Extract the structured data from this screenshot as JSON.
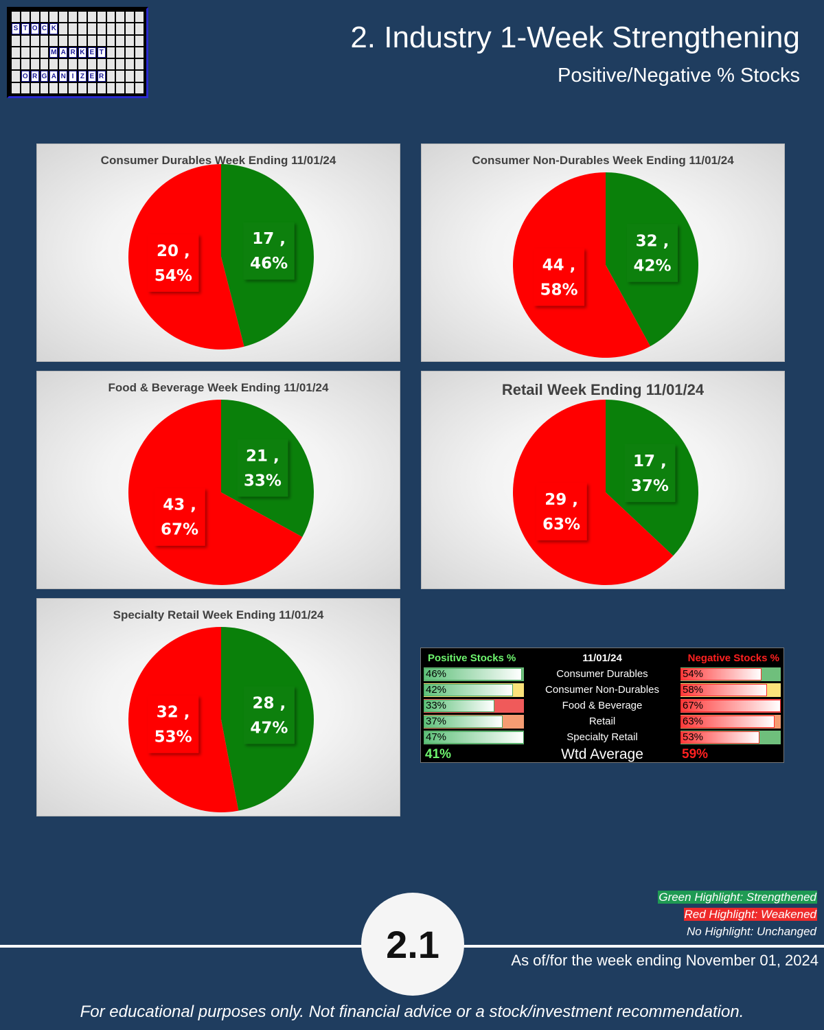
{
  "logo": {
    "words": [
      "STOCK",
      "MARKET",
      "ORGANIZER"
    ]
  },
  "header": {
    "title": "2. Industry 1-Week Strengthening",
    "subtitle": "Positive/Negative % Stocks"
  },
  "colors": {
    "positive": "#0a800a",
    "negative": "#ff0000",
    "background": "#1f3d5f"
  },
  "chart_data": [
    {
      "type": "pie",
      "title": "Consumer Durables Week Ending 11/01/24",
      "slices": [
        {
          "label": "17 ,\n46%",
          "count": 17,
          "percent": 46,
          "color": "#0a800a"
        },
        {
          "label": "20 ,\n54%",
          "count": 20,
          "percent": 54,
          "color": "#ff0000"
        }
      ]
    },
    {
      "type": "pie",
      "title": "Consumer Non-Durables Week Ending 11/01/24",
      "slices": [
        {
          "label": "32 ,\n42%",
          "count": 32,
          "percent": 42,
          "color": "#0a800a"
        },
        {
          "label": "44 ,\n58%",
          "count": 44,
          "percent": 58,
          "color": "#ff0000"
        }
      ]
    },
    {
      "type": "pie",
      "title": "Food & Beverage Week Ending 11/01/24",
      "slices": [
        {
          "label": "21 ,\n33%",
          "count": 21,
          "percent": 33,
          "color": "#0a800a"
        },
        {
          "label": "43 ,\n67%",
          "count": 43,
          "percent": 67,
          "color": "#ff0000"
        }
      ]
    },
    {
      "type": "pie",
      "title": "Retail Week Ending 11/01/24",
      "slices": [
        {
          "label": "17 ,\n37%",
          "count": 17,
          "percent": 37,
          "color": "#0a800a"
        },
        {
          "label": "29 ,\n63%",
          "count": 29,
          "percent": 63,
          "color": "#ff0000"
        }
      ]
    },
    {
      "type": "pie",
      "title": "Specialty Retail Week Ending 11/01/24",
      "slices": [
        {
          "label": "28 ,\n47%",
          "count": 28,
          "percent": 47,
          "color": "#0a800a"
        },
        {
          "label": "32 ,\n53%",
          "count": 32,
          "percent": 53,
          "color": "#ff0000"
        }
      ]
    }
  ],
  "summary_table": {
    "header_positive": "Positive Stocks %",
    "header_date": "11/01/24",
    "header_negative": "Negative Stocks %",
    "rows": [
      {
        "industry": "Consumer Durables",
        "positive": "46%",
        "pos_value": 46,
        "pos_change": "strengthened",
        "negative": "54%",
        "neg_value": 54,
        "neg_change": "strengthened"
      },
      {
        "industry": "Consumer Non-Durables",
        "positive": "42%",
        "pos_value": 42,
        "pos_change": "yellow",
        "negative": "58%",
        "neg_value": 58,
        "neg_change": "yellow"
      },
      {
        "industry": "Food & Beverage",
        "positive": "33%",
        "pos_value": 33,
        "pos_change": "weakened",
        "negative": "67%",
        "neg_value": 67,
        "neg_change": "weakened"
      },
      {
        "industry": "Retail",
        "positive": "37%",
        "pos_value": 37,
        "pos_change": "orange",
        "negative": "63%",
        "neg_value": 63,
        "neg_change": "orange"
      },
      {
        "industry": "Specialty Retail",
        "positive": "47%",
        "pos_value": 47,
        "pos_change": "strengthened",
        "negative": "53%",
        "neg_value": 53,
        "neg_change": "strengthened"
      }
    ],
    "footer_positive": "41%",
    "footer_label": "Wtd Average",
    "footer_negative": "59%"
  },
  "legend": {
    "green": "Green Highlight: Strengthened",
    "red": "Red Highlight: Weakened",
    "none": "No Highlight: Unchanged"
  },
  "footer": {
    "page_number": "2.1",
    "as_of": "As of/for the week ending November 01, 2024",
    "disclaimer": "For educational purposes only. Not financial advice or a stock/investment recommendation."
  }
}
